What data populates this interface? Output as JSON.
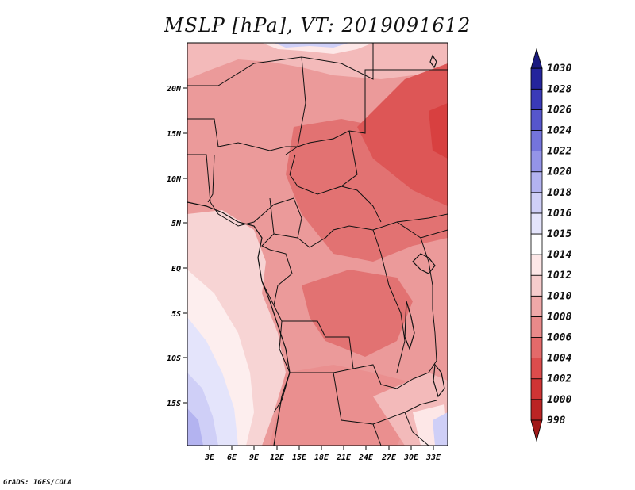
{
  "title": "MSLP [hPa], VT: 2019091612",
  "credit": "GrADS: IGES/COLA",
  "map": {
    "lat_labels": [
      "20N",
      "15N",
      "10N",
      "5N",
      "EQ",
      "5S",
      "10S",
      "15S"
    ],
    "lon_labels": [
      "3E",
      "6E",
      "9E",
      "12E",
      "15E",
      "18E",
      "21E",
      "24E",
      "27E",
      "30E",
      "33E"
    ]
  },
  "colorbar": {
    "levels": [
      "998",
      "1000",
      "1002",
      "1004",
      "1006",
      "1008",
      "1010",
      "1012",
      "1014",
      "1015",
      "1016",
      "1018",
      "1020",
      "1022",
      "1024",
      "1026",
      "1028",
      "1030"
    ],
    "colors": [
      "#a11a1a",
      "#bb2424",
      "#cf3434",
      "#dc4c4c",
      "#e46a6a",
      "#e98a8a",
      "#efa8a8",
      "#f6cccc",
      "#fde7e7",
      "#ffffff",
      "#e4e4fb",
      "#cfcff7",
      "#b3b3f0",
      "#9494e8",
      "#7474dc",
      "#5656cc",
      "#3a3ab8",
      "#24249c",
      "#1a1a80"
    ]
  }
}
